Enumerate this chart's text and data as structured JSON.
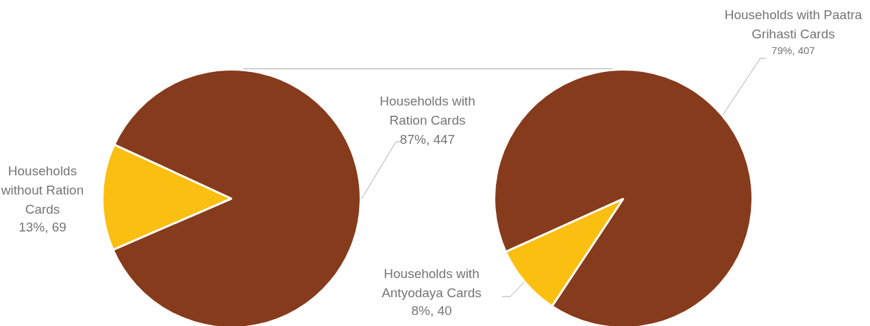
{
  "chart_data": [
    {
      "type": "pie",
      "categories": [
        "Households without Ration Cards",
        "Households with Ration Cards"
      ],
      "values": [
        69,
        447
      ],
      "colors": [
        "#fbbf11",
        "#863b1c"
      ],
      "value_labels": [
        "13%, 69",
        "87%, 447"
      ],
      "legend": false
    },
    {
      "type": "pie",
      "categories": [
        "Households with Antyodaya Cards",
        "Households with Paatra Grihasti Cards"
      ],
      "values": [
        40,
        407
      ],
      "colors": [
        "#fbbf11",
        "#863b1c"
      ],
      "value_labels": [
        "8%, 40",
        "79%, 407"
      ],
      "legend": false
    }
  ]
}
